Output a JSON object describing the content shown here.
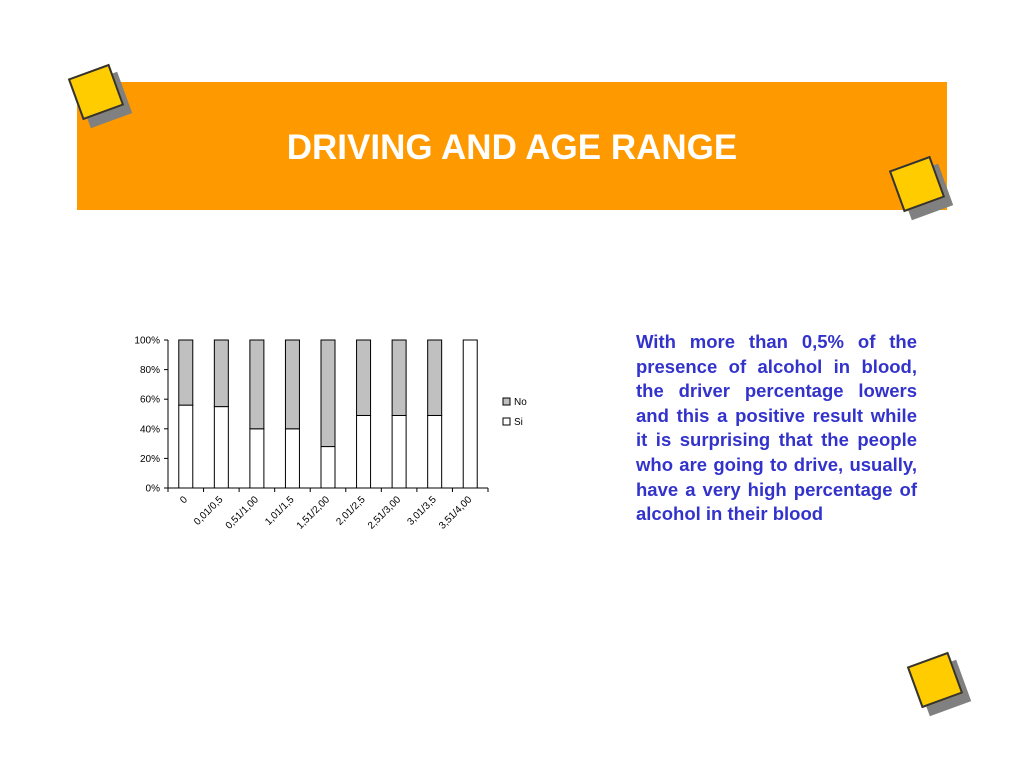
{
  "slide": {
    "title": "DRIVING AND AGE RANGE",
    "body": "With more than 0,5% of the presence of alcohol in blood, the driver percentage lowers and this a positive result while it is surprising that the people who are going to drive, usually, have a very high percentage of alcohol in their blood"
  },
  "colors": {
    "banner": "#ff9900",
    "title_text": "#ffffff",
    "body_text": "#3333cc",
    "deco_fill": "#ffcc00",
    "deco_shadow": "#808080"
  },
  "chart_data": {
    "type": "bar",
    "stacked": true,
    "percent": true,
    "categories": [
      "0",
      "0,01/0,5",
      "0,51/1,00",
      "1,01/1,5",
      "1,51/2,00",
      "2,01/2,5",
      "2,51/3,00",
      "3,01/3,5",
      "3,51/4,00"
    ],
    "series": [
      {
        "name": "Si",
        "color": "#ffffff",
        "values": [
          56,
          55,
          40,
          40,
          28,
          49,
          49,
          49,
          100
        ]
      },
      {
        "name": "No",
        "color": "#c0c0c0",
        "values": [
          44,
          45,
          60,
          60,
          72,
          51,
          51,
          51,
          0
        ]
      }
    ],
    "legend_order": [
      "No",
      "Si"
    ],
    "yticks": [
      "0%",
      "20%",
      "40%",
      "60%",
      "80%",
      "100%"
    ],
    "ylim": [
      0,
      100
    ],
    "legend_position": "right",
    "grid": false
  }
}
